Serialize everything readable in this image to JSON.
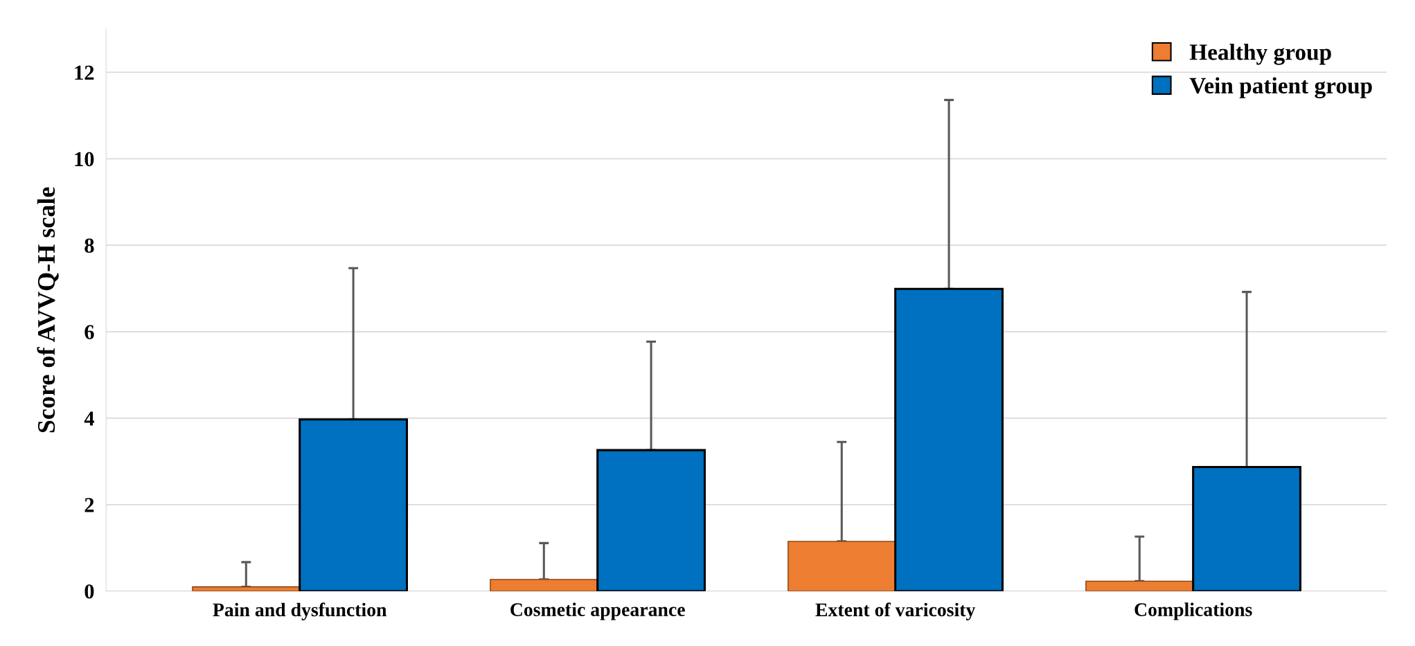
{
  "chart_data": {
    "type": "bar",
    "ylabel": "Score of AVVQ-H scale",
    "categories": [
      "Pain and dysfunction",
      "Cosmetic appearance",
      "Extent of varicosity",
      "Complications"
    ],
    "series": [
      {
        "name": "Healthy group",
        "color": "#ed7d31",
        "values": [
          0.1,
          0.27,
          1.15,
          0.23
        ],
        "errors": [
          [
            0.1,
            0.67
          ],
          [
            0.27,
            1.11
          ],
          [
            1.15,
            3.45
          ],
          [
            0.23,
            1.26
          ]
        ]
      },
      {
        "name": "Vein patient group",
        "color": "#0070c0",
        "values": [
          3.97,
          3.26,
          6.99,
          2.87
        ],
        "errors": [
          [
            3.97,
            7.47
          ],
          [
            3.26,
            5.77
          ],
          [
            6.99,
            11.36
          ],
          [
            2.87,
            6.92
          ]
        ]
      }
    ],
    "ylim": [
      0,
      13
    ],
    "yticks": [
      0,
      2,
      4,
      6,
      8,
      10,
      12
    ],
    "grid": "y",
    "legend": "top right"
  }
}
